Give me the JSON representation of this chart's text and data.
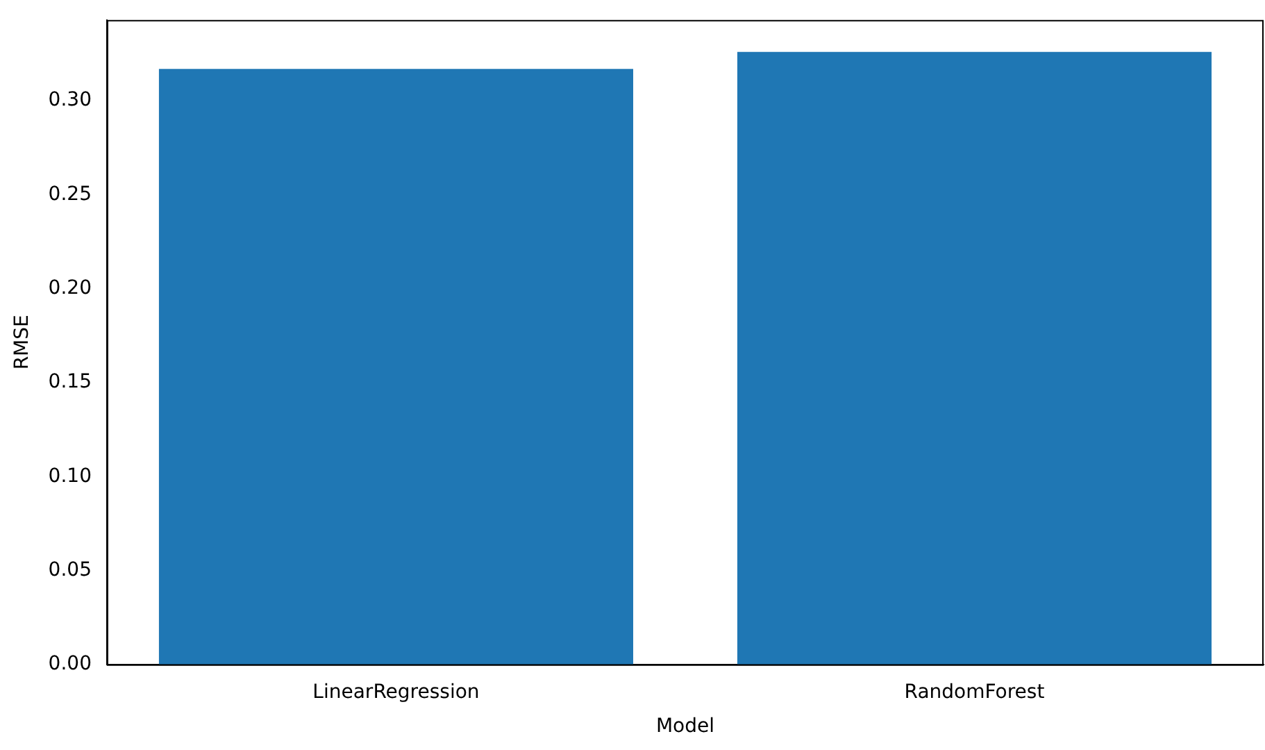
{
  "chart_data": {
    "type": "bar",
    "xlabel": "Model",
    "ylabel": "RMSE",
    "categories": [
      "LinearRegression",
      "RandomForest"
    ],
    "values": [
      0.317,
      0.326
    ],
    "color": "#1f77b4",
    "ylim": [
      0,
      0.343
    ],
    "yticks": [
      {
        "value": 0,
        "label": "0.00"
      },
      {
        "value": 0.05,
        "label": "0.05"
      },
      {
        "value": 0.1,
        "label": "0.10"
      },
      {
        "value": 0.15,
        "label": "0.15"
      },
      {
        "value": 0.2,
        "label": "0.20"
      },
      {
        "value": 0.25,
        "label": "0.25"
      },
      {
        "value": 0.3,
        "label": "0.30"
      }
    ],
    "grid": false,
    "legend": false
  }
}
